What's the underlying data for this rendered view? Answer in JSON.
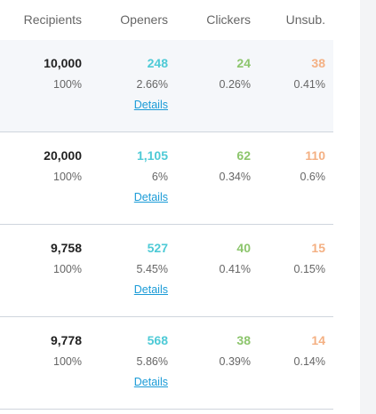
{
  "table": {
    "headers": [
      "Recipients",
      "Openers",
      "Clickers",
      "Unsub."
    ],
    "rows": [
      {
        "recipients": "10,000",
        "recipients_pct": "100%",
        "openers": "248",
        "openers_pct": "2.66%",
        "clickers": "24",
        "clickers_pct": "0.26%",
        "unsub": "38",
        "unsub_pct": "0.41%",
        "link": "Details"
      },
      {
        "recipients": "20,000",
        "recipients_pct": "100%",
        "openers": "1,105",
        "openers_pct": "6%",
        "clickers": "62",
        "clickers_pct": "0.34%",
        "unsub": "110",
        "unsub_pct": "0.6%",
        "link": "Details"
      },
      {
        "recipients": "9,758",
        "recipients_pct": "100%",
        "openers": "527",
        "openers_pct": "5.45%",
        "clickers": "40",
        "clickers_pct": "0.41%",
        "unsub": "15",
        "unsub_pct": "0.15%",
        "link": "Details"
      },
      {
        "recipients": "9,778",
        "recipients_pct": "100%",
        "openers": "568",
        "openers_pct": "5.86%",
        "clickers": "38",
        "clickers_pct": "0.39%",
        "unsub": "14",
        "unsub_pct": "0.14%",
        "link": "Details"
      }
    ]
  }
}
